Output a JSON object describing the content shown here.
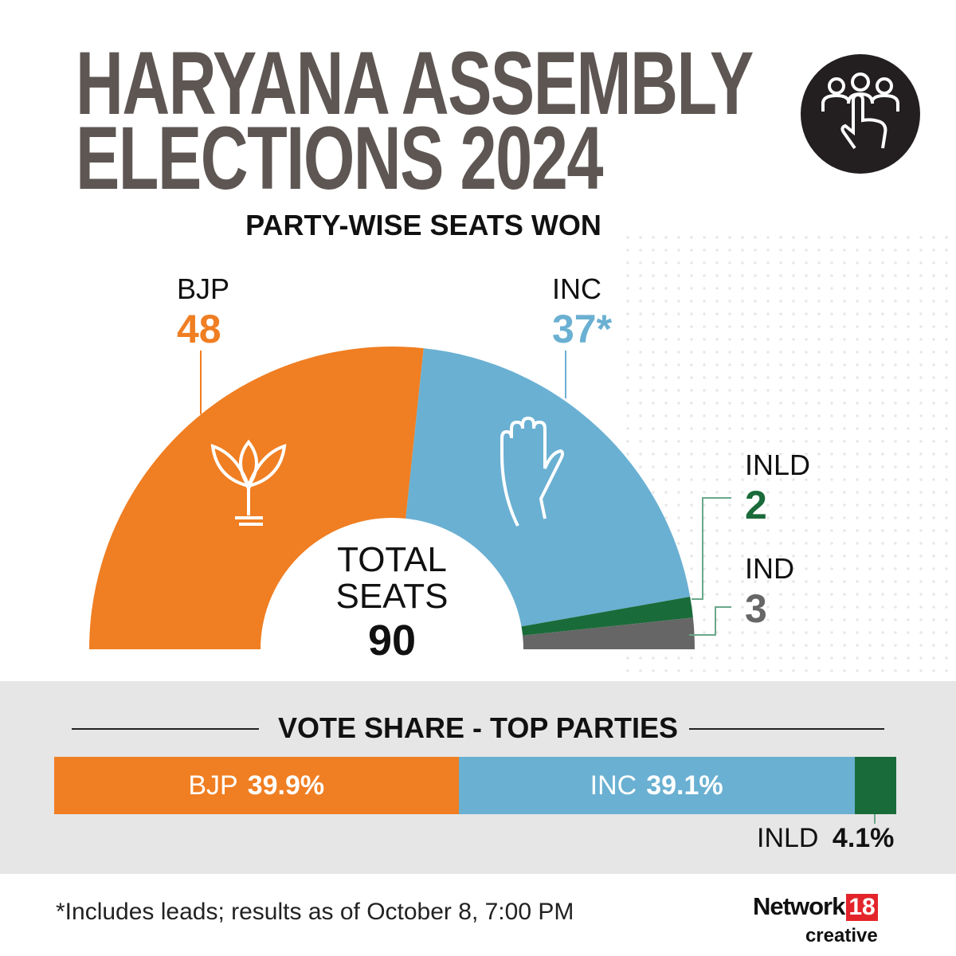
{
  "header": {
    "title_line1": "HARYANA ASSEMBLY",
    "title_line2": "ELECTIONS 2024",
    "subtitle": "PARTY-WISE SEATS WON",
    "icon": "voting-hand-people-icon"
  },
  "chart_data": [
    {
      "type": "pie",
      "variant": "semi-donut",
      "title": "PARTY-WISE SEATS WON",
      "center_label": "TOTAL SEATS",
      "total": 90,
      "slices": [
        {
          "label": "BJP",
          "value": 48,
          "display": "48",
          "color": "#f07e22"
        },
        {
          "label": "INC",
          "value": 37,
          "display": "37*",
          "color": "#6ab0d2"
        },
        {
          "label": "INLD",
          "value": 2,
          "display": "2",
          "color": "#1a6b3a"
        },
        {
          "label": "IND",
          "value": 3,
          "display": "3",
          "color": "#666666"
        }
      ]
    },
    {
      "type": "bar",
      "variant": "stacked-horizontal",
      "title": "VOTE SHARE - TOP PARTIES",
      "unit": "%",
      "series": [
        {
          "name": "BJP",
          "value": 39.9,
          "display": "39.9%",
          "color": "#f07e22"
        },
        {
          "name": "INC",
          "value": 39.1,
          "display": "39.1%",
          "color": "#6ab0d2"
        },
        {
          "name": "INLD",
          "value": 4.1,
          "display": "4.1%",
          "color": "#1a6b3a"
        }
      ]
    }
  ],
  "center": {
    "line1": "TOTAL",
    "line2": "SEATS",
    "total": "90"
  },
  "footnote": "*Includes leads; results as of October 8, 7:00 PM",
  "logo": {
    "name": "Network",
    "number": "18",
    "tagline": "creative"
  }
}
